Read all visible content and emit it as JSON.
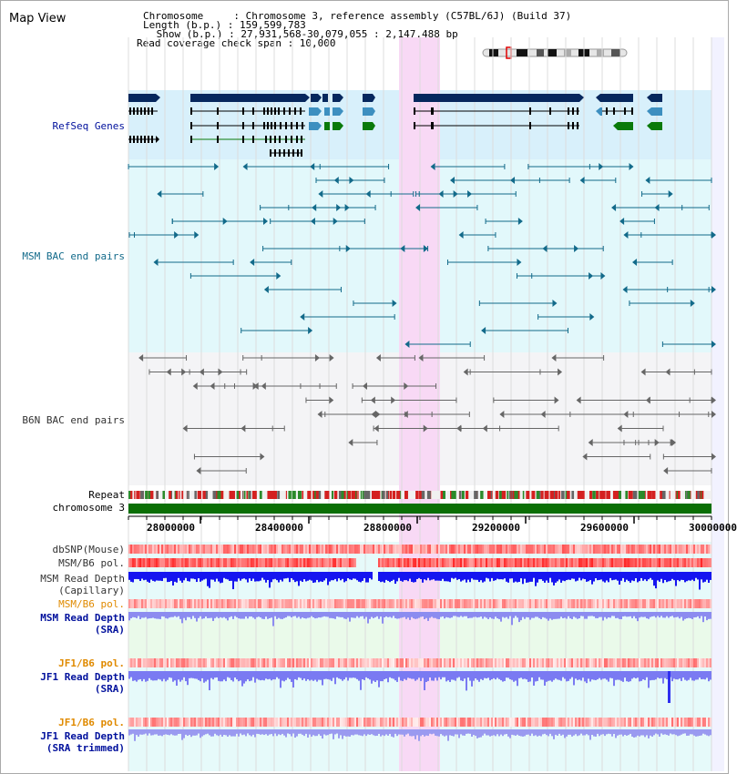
{
  "title": "Map View",
  "header": {
    "chromosome_line": "Chromosome     : Chromosome 3, reference assembly (C57BL/6J) (Build 37)",
    "length_line": "Length (b.p.) : 159,599,783",
    "show_line": " Show (b.p.) : 27,931,568-30,079,055 : 2,147,488 bp",
    "read_coverage_line": "Read coverage check span : 10,000"
  },
  "colors": {
    "refseq_bg": "#d8f0fb",
    "msm_bac_bg": "#e2f8fb",
    "b6n_bac_bg": "#f4f4f6",
    "highlight": "#f8d9f5",
    "refseq_dark": "#06275d",
    "refseq_teal": "#3d8fc0",
    "refseq_green": "#0a7a0a",
    "msm_bac_color": "#126a8a",
    "b6n_bac_color": "#666666",
    "chromosome_bar": "#0b6f05",
    "read_depth_blue": "#1515f0",
    "light_read_depth": "#7a7af2",
    "pol_red": "#e03030",
    "label_gray": "#333333",
    "label_orange": "#e08a00",
    "label_blue": "#00109c",
    "label_teal": "#126a8a"
  },
  "tracks": {
    "refseq": "RefSeq Genes",
    "msm_bac": "MSM BAC end pairs",
    "b6n_bac": "B6N BAC end pairs",
    "repeat": "Repeat",
    "chromosome": "chromosome 3",
    "dbsnp": "dbSNP(Mouse)",
    "msm_b6_pol_1": "MSM/B6 pol.",
    "msm_read_depth_cap_1": "MSM Read Depth",
    "msm_read_depth_cap_2": "(Capillary)",
    "msm_b6_pol_2": "MSM/B6 pol.",
    "msm_read_depth_sra_1": "MSM Read Depth",
    "msm_read_depth_sra_2": "(SRA)",
    "jf1_b6_pol_1": "JF1/B6 pol.",
    "jf1_read_depth_sra_1": "JF1 Read Depth",
    "jf1_read_depth_sra_2": "(SRA)",
    "jf1_b6_pol_2": "JF1/B6 pol.",
    "jf1_read_depth_trim_1": "JF1 Read Depth",
    "jf1_read_depth_trim_2": "(SRA trimmed)"
  },
  "axis": {
    "ticks": [
      "28000000",
      "28400000",
      "28800000",
      "29200000",
      "29600000",
      "30000000"
    ]
  }
}
